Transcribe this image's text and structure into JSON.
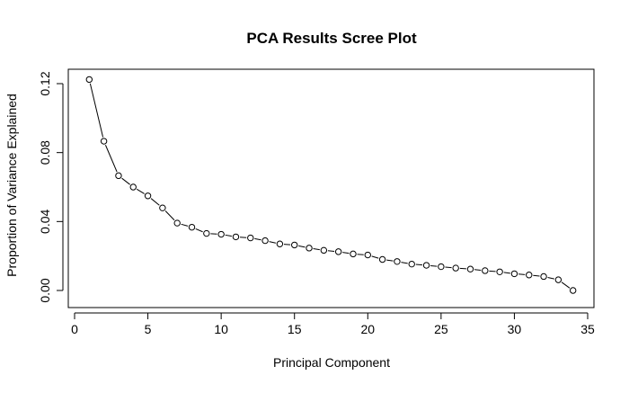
{
  "chart_data": {
    "type": "line",
    "title": "PCA Results Scree Plot",
    "xlabel": "Principal Component",
    "ylabel": "Proportion of Variance Explained",
    "xlim": [
      0,
      35
    ],
    "ylim": [
      0,
      0.12
    ],
    "x_ticks": [
      {
        "value": 0,
        "label": "0"
      },
      {
        "value": 5,
        "label": "5"
      },
      {
        "value": 10,
        "label": "10"
      },
      {
        "value": 15,
        "label": "15"
      },
      {
        "value": 20,
        "label": "20"
      },
      {
        "value": 25,
        "label": "25"
      },
      {
        "value": 30,
        "label": "30"
      },
      {
        "value": 35,
        "label": "35"
      }
    ],
    "y_ticks": [
      {
        "value": 0,
        "label": "0.00"
      },
      {
        "value": 0.04,
        "label": "0.04"
      },
      {
        "value": 0.08,
        "label": "0.08"
      },
      {
        "value": 0.12,
        "label": "0.12"
      }
    ],
    "grid": false,
    "marker": "open-circle",
    "line_style": "solid",
    "series": [
      {
        "x": [
          1,
          2,
          3,
          4,
          5,
          6,
          7,
          8,
          9,
          10,
          11,
          12,
          13,
          14,
          15,
          16,
          17,
          18,
          19,
          20,
          21,
          22,
          23,
          24,
          25,
          26,
          27,
          28,
          29,
          30,
          31,
          32,
          33,
          34
        ],
        "values": [
          0.1224,
          0.0866,
          0.0666,
          0.06,
          0.0549,
          0.0479,
          0.0391,
          0.0367,
          0.0331,
          0.0326,
          0.0311,
          0.0305,
          0.0289,
          0.027,
          0.0264,
          0.0246,
          0.0233,
          0.0225,
          0.0212,
          0.0206,
          0.018,
          0.0168,
          0.0153,
          0.0146,
          0.0138,
          0.013,
          0.0124,
          0.0115,
          0.0108,
          0.0097,
          0.009,
          0.0081,
          0.0062,
          0.0
        ]
      }
    ]
  }
}
